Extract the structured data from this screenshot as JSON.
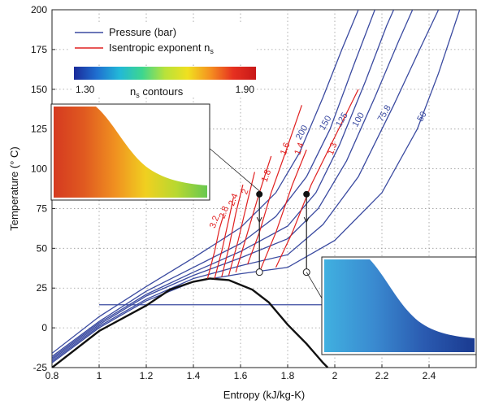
{
  "chart_data": {
    "type": "line",
    "xlabel": "Entropy (kJ/kg-K)",
    "ylabel": "Temperature (° C)",
    "xlim": [
      0.8,
      2.6
    ],
    "ylim": [
      -25,
      200
    ],
    "xticks": [
      "0.8",
      "1",
      "1.2",
      "1.4",
      "1.6",
      "1.8",
      "2",
      "2.2",
      "2.4"
    ],
    "yticks": [
      "-25",
      "0",
      "25",
      "50",
      "75",
      "100",
      "125",
      "150",
      "175",
      "200"
    ],
    "grid": true,
    "legend": {
      "placement": "top-left",
      "entries": [
        {
          "label": "Pressure (bar)",
          "color": "#3a4aa0"
        },
        {
          "label": "Isentropic exponent n",
          "subscript": "s",
          "color": "#e02020"
        }
      ]
    },
    "colorbar": {
      "title_main": "n",
      "title_sub": "s",
      "title_rest": " contours",
      "min_label": "1.30",
      "max_label": "1.90",
      "colors": [
        "#1a2a9a",
        "#1f6fd0",
        "#22b8d8",
        "#3dd68f",
        "#b8e23a",
        "#f0e020",
        "#f59020",
        "#e63020",
        "#c81818"
      ]
    },
    "saturation_dome": [
      [
        0.8,
        -25
      ],
      [
        1.0,
        -2
      ],
      [
        1.2,
        14
      ],
      [
        1.3,
        24
      ],
      [
        1.4,
        29
      ],
      [
        1.47,
        31
      ],
      [
        1.55,
        30
      ],
      [
        1.65,
        24
      ],
      [
        1.72,
        16
      ],
      [
        1.8,
        2
      ],
      [
        1.88,
        -10
      ],
      [
        1.95,
        -22
      ],
      [
        1.97,
        -25
      ]
    ],
    "series_pressure": [
      {
        "name": "50",
        "points": [
          [
            0.8,
            -22
          ],
          [
            1.0,
            0
          ],
          [
            1.2,
            17
          ],
          [
            1.4,
            29
          ],
          [
            1.6,
            34
          ],
          [
            1.8,
            38
          ],
          [
            2.0,
            55
          ],
          [
            2.2,
            85
          ],
          [
            2.35,
            125
          ],
          [
            2.44,
            160
          ],
          [
            2.53,
            200
          ]
        ]
      },
      {
        "name": "75.8",
        "points": [
          [
            0.8,
            -21
          ],
          [
            1.0,
            1
          ],
          [
            1.2,
            18
          ],
          [
            1.4,
            31
          ],
          [
            1.6,
            39
          ],
          [
            1.8,
            46
          ],
          [
            1.95,
            65
          ],
          [
            2.1,
            95
          ],
          [
            2.25,
            140
          ],
          [
            2.36,
            175
          ],
          [
            2.44,
            200
          ]
        ]
      },
      {
        "name": "100",
        "points": [
          [
            0.8,
            -20
          ],
          [
            1.0,
            2
          ],
          [
            1.2,
            20
          ],
          [
            1.4,
            33
          ],
          [
            1.6,
            44
          ],
          [
            1.8,
            56
          ],
          [
            1.93,
            75
          ],
          [
            2.05,
            105
          ],
          [
            2.17,
            145
          ],
          [
            2.27,
            180
          ],
          [
            2.33,
            200
          ]
        ]
      },
      {
        "name": "125",
        "points": [
          [
            0.8,
            -19
          ],
          [
            1.0,
            3
          ],
          [
            1.2,
            21
          ],
          [
            1.4,
            35
          ],
          [
            1.6,
            48
          ],
          [
            1.8,
            64
          ],
          [
            1.92,
            85
          ],
          [
            2.02,
            115
          ],
          [
            2.13,
            155
          ],
          [
            2.22,
            190
          ],
          [
            2.25,
            200
          ]
        ]
      },
      {
        "name": "150",
        "points": [
          [
            0.8,
            -18
          ],
          [
            1.0,
            4
          ],
          [
            1.2,
            23
          ],
          [
            1.4,
            38
          ],
          [
            1.6,
            53
          ],
          [
            1.75,
            70
          ],
          [
            1.88,
            95
          ],
          [
            1.98,
            125
          ],
          [
            2.08,
            165
          ],
          [
            2.17,
            200
          ]
        ]
      },
      {
        "name": "200",
        "points": [
          [
            0.8,
            -16
          ],
          [
            1.0,
            7
          ],
          [
            1.2,
            26
          ],
          [
            1.4,
            44
          ],
          [
            1.6,
            63
          ],
          [
            1.75,
            85
          ],
          [
            1.85,
            110
          ],
          [
            1.95,
            145
          ],
          [
            2.03,
            175
          ],
          [
            2.1,
            200
          ]
        ]
      }
    ],
    "series_ns": [
      {
        "name": "1.3",
        "points": [
          [
            1.75,
            38
          ],
          [
            1.82,
            60
          ],
          [
            1.9,
            90
          ],
          [
            2.0,
            120
          ],
          [
            2.1,
            150
          ]
        ]
      },
      {
        "name": "1.4",
        "points": [
          [
            1.68,
            35
          ],
          [
            1.75,
            60
          ],
          [
            1.82,
            90
          ],
          [
            1.88,
            112
          ]
        ]
      },
      {
        "name": "1.6",
        "points": [
          [
            1.63,
            40
          ],
          [
            1.68,
            60
          ],
          [
            1.73,
            85
          ],
          [
            1.79,
            110
          ],
          [
            1.86,
            140
          ]
        ]
      },
      {
        "name": "1.8",
        "points": [
          [
            1.58,
            35
          ],
          [
            1.63,
            60
          ],
          [
            1.68,
            85
          ],
          [
            1.73,
            108
          ]
        ]
      },
      {
        "name": "2",
        "points": [
          [
            1.55,
            33
          ],
          [
            1.59,
            55
          ],
          [
            1.63,
            80
          ],
          [
            1.66,
            98
          ]
        ]
      },
      {
        "name": "2.4",
        "points": [
          [
            1.52,
            32
          ],
          [
            1.55,
            50
          ],
          [
            1.58,
            72
          ],
          [
            1.61,
            90
          ]
        ]
      },
      {
        "name": "2.8",
        "points": [
          [
            1.49,
            31
          ],
          [
            1.52,
            48
          ],
          [
            1.55,
            68
          ],
          [
            1.57,
            82
          ]
        ]
      },
      {
        "name": "3.2",
        "points": [
          [
            1.46,
            31
          ],
          [
            1.49,
            48
          ],
          [
            1.51,
            62
          ],
          [
            1.53,
            72
          ]
        ]
      }
    ],
    "ns_label_text": [
      "1.6",
      "1.8",
      "2",
      "2.4",
      "2.8",
      "3.2",
      "1.4",
      "1.3"
    ],
    "horizontal_line": {
      "y": 14.5,
      "x": [
        1.0,
        1.95
      ]
    },
    "process_lines": [
      {
        "start": [
          1.68,
          84
        ],
        "end": [
          1.68,
          35
        ]
      },
      {
        "start": [
          1.88,
          84
        ],
        "end": [
          1.88,
          35
        ]
      }
    ],
    "inset_top_left": {
      "description": "colored field",
      "colors": [
        "#d53a20",
        "#e05a20",
        "#f09020",
        "#f0d020",
        "#b8d830",
        "#68c850"
      ]
    },
    "inset_bottom_right": {
      "description": "blue field",
      "colors": [
        "#40b0e0",
        "#3a8ad0",
        "#2a5ab0",
        "#1a3a90"
      ]
    }
  }
}
